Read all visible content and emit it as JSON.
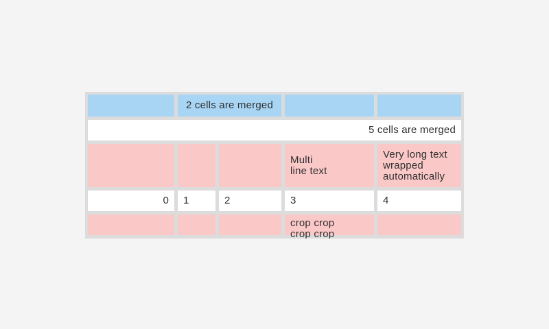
{
  "colors": {
    "page_background": "#f4f4f5",
    "table_grid": "#dcdcdc",
    "blue_cell": "#a8d5f4",
    "pink_cell": "#fbc8c8",
    "white_cell": "#ffffff",
    "text": "#303030"
  },
  "table": {
    "row1": {
      "merged_cell_label": "2 cells are merged"
    },
    "row2": {
      "merged_cell_label": "5 cells are merged"
    },
    "row3": {
      "multi_line_text": "Multi\nline text",
      "wrapped_text": "Very long text wrapped automatically"
    },
    "row4": {
      "values": [
        "0",
        "1",
        "2",
        "3",
        "4"
      ]
    },
    "row5": {
      "crop_text": "crop crop crop crop"
    }
  }
}
